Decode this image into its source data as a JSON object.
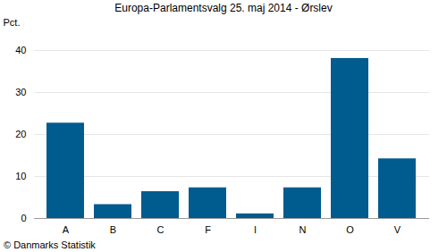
{
  "chart_data": {
    "type": "bar",
    "title": "Europa-Parlamentsvalg 25. maj 2014 - Ørslev",
    "y_label": "Pct.",
    "caption": "© Danmarks Statistik",
    "categories": [
      "A",
      "B",
      "C",
      "F",
      "I",
      "N",
      "O",
      "V"
    ],
    "values": [
      22.7,
      3.3,
      6.4,
      7.3,
      1.1,
      7.3,
      38.1,
      14.2
    ],
    "color": "#005b8f",
    "ylim": [
      0,
      40
    ],
    "yticks": [
      0,
      10,
      20,
      30,
      40
    ],
    "grid": true
  }
}
